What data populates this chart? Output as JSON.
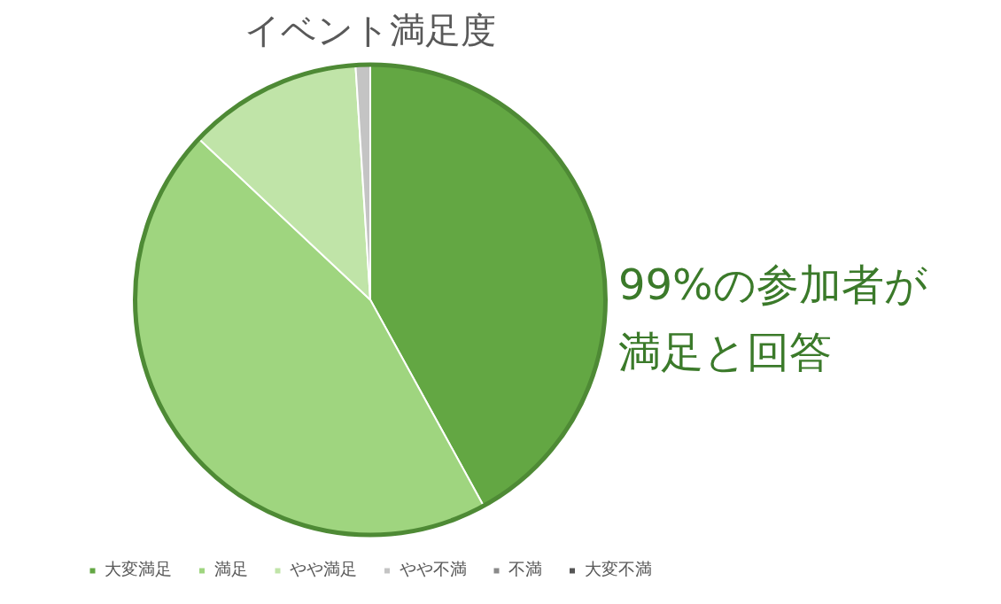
{
  "chart_data": {
    "type": "pie",
    "title": "イベント満足度",
    "categories": [
      "大変満足",
      "満足",
      "やや満足",
      "やや不満",
      "不満",
      "大変不満"
    ],
    "values": [
      42,
      45,
      12,
      1,
      0,
      0
    ],
    "colors": [
      "#63a743",
      "#9fd57f",
      "#c0e4a8",
      "#c4c4c4",
      "#8a8a8a",
      "#555555"
    ],
    "legend": "bottom",
    "annotations": [
      "99%の参加者が",
      "満足と回答"
    ]
  }
}
